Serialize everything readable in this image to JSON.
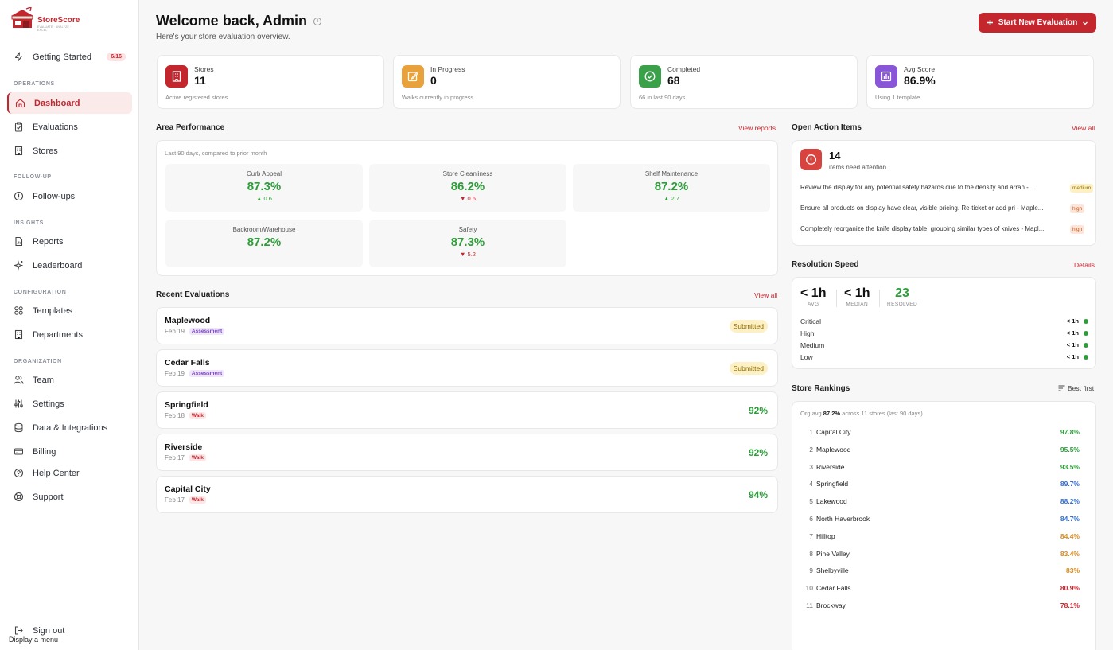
{
  "brand": {
    "name": "StoreScore",
    "tagline": "EVALUATE · ANALYZE · EXCEL"
  },
  "sidebar": {
    "getting_started": {
      "label": "Getting Started",
      "badge": "6/16"
    },
    "sections": [
      "OPERATIONS",
      "FOLLOW-UP",
      "INSIGHTS",
      "CONFIGURATION",
      "ORGANIZATION"
    ],
    "items": [
      {
        "label": "Dashboard"
      },
      {
        "label": "Evaluations"
      },
      {
        "label": "Stores"
      },
      {
        "label": "Follow-ups"
      },
      {
        "label": "Reports"
      },
      {
        "label": "Leaderboard"
      },
      {
        "label": "Templates"
      },
      {
        "label": "Departments"
      },
      {
        "label": "Team"
      },
      {
        "label": "Settings"
      },
      {
        "label": "Data & Integrations"
      },
      {
        "label": "Billing"
      },
      {
        "label": "Help Center"
      },
      {
        "label": "Support"
      }
    ],
    "sign_out": "Sign out",
    "tooltip": "Display a menu"
  },
  "header": {
    "title": "Welcome back, Admin",
    "info_glyph": "i",
    "subtitle": "Here's your store evaluation overview.",
    "primary_button": "Start New Evaluation"
  },
  "stats": [
    {
      "label": "Stores",
      "value": "11",
      "caption": "Active registered stores",
      "color": "#c4262e"
    },
    {
      "label": "In Progress",
      "value": "0",
      "caption": "Walks currently in progress",
      "color": "#e9a23b"
    },
    {
      "label": "Completed",
      "value": "68",
      "caption": "66 in last 90 days",
      "color": "#3aa14a"
    },
    {
      "label": "Avg Score",
      "value": "86.9%",
      "caption": "Using 1 template",
      "color": "#8a56d8"
    }
  ],
  "area_performance": {
    "title": "Area Performance",
    "link": "View reports",
    "caption": "Last 90 days, compared to prior month",
    "areas": [
      {
        "name": "Curb Appeal",
        "value": "87.3%",
        "delta": "▲ 0.6",
        "dir": "up"
      },
      {
        "name": "Store Cleanliness",
        "value": "86.2%",
        "delta": "▼ 0.6",
        "dir": "down"
      },
      {
        "name": "Shelf Maintenance",
        "value": "87.2%",
        "delta": "▲ 2.7",
        "dir": "up"
      },
      {
        "name": "Backroom/Warehouse",
        "value": "87.2%",
        "delta": "",
        "dir": ""
      },
      {
        "name": "Safety",
        "value": "87.3%",
        "delta": "▼ 5.2",
        "dir": "down"
      }
    ]
  },
  "recent_evaluations": {
    "title": "Recent Evaluations",
    "link": "View all",
    "rows": [
      {
        "store": "Maplewood",
        "date": "Feb 19",
        "type": "Assessment",
        "status": "Submitted",
        "score": ""
      },
      {
        "store": "Cedar Falls",
        "date": "Feb 19",
        "type": "Assessment",
        "status": "Submitted",
        "score": ""
      },
      {
        "store": "Springfield",
        "date": "Feb 18",
        "type": "Walk",
        "status": "",
        "score": "92%"
      },
      {
        "store": "Riverside",
        "date": "Feb 17",
        "type": "Walk",
        "status": "",
        "score": "92%"
      },
      {
        "store": "Capital City",
        "date": "Feb 17",
        "type": "Walk",
        "status": "",
        "score": "94%"
      }
    ]
  },
  "open_action_items": {
    "title": "Open Action Items",
    "link": "View all",
    "count": "14",
    "count_label": "items need attention",
    "items": [
      {
        "text": "Review the display for any potential safety hazards due to the density and arran - ...",
        "severity": "medium"
      },
      {
        "text": "Ensure all products on display have clear, visible pricing. Re-ticket or add pri - Maple...",
        "severity": "high"
      },
      {
        "text": "Completely reorganize the knife display table, grouping similar types of knives - Mapl...",
        "severity": "high"
      }
    ]
  },
  "resolution_speed": {
    "title": "Resolution Speed",
    "link": "Details",
    "avg": "< 1h",
    "avg_label": "AVG",
    "median": "< 1h",
    "median_label": "MEDIAN",
    "resolved": "23",
    "resolved_label": "RESOLVED",
    "rows": [
      {
        "label": "Critical",
        "time": "< 1h"
      },
      {
        "label": "High",
        "time": "< 1h"
      },
      {
        "label": "Medium",
        "time": "< 1h"
      },
      {
        "label": "Low",
        "time": "< 1h"
      }
    ]
  },
  "store_rankings": {
    "title": "Store Rankings",
    "sort_label": "Best first",
    "caption_prefix": "Org avg",
    "caption_value": "87.2%",
    "caption_suffix": "across 11 stores (last 90 days)",
    "rows": [
      {
        "rank": "1",
        "store": "Capital City",
        "score": "97.8%",
        "color": "#2e9c3a"
      },
      {
        "rank": "2",
        "store": "Maplewood",
        "score": "95.5%",
        "color": "#2e9c3a"
      },
      {
        "rank": "3",
        "store": "Riverside",
        "score": "93.5%",
        "color": "#2e9c3a"
      },
      {
        "rank": "4",
        "store": "Springfield",
        "score": "89.7%",
        "color": "#2f6fd6"
      },
      {
        "rank": "5",
        "store": "Lakewood",
        "score": "88.2%",
        "color": "#2f6fd6"
      },
      {
        "rank": "6",
        "store": "North Haverbrook",
        "score": "84.7%",
        "color": "#2f6fd6"
      },
      {
        "rank": "7",
        "store": "Hilltop",
        "score": "84.4%",
        "color": "#d98a1c"
      },
      {
        "rank": "8",
        "store": "Pine Valley",
        "score": "83.4%",
        "color": "#d98a1c"
      },
      {
        "rank": "9",
        "store": "Shelbyville",
        "score": "83%",
        "color": "#d98a1c"
      },
      {
        "rank": "10",
        "store": "Cedar Falls",
        "score": "80.9%",
        "color": "#c4262e"
      },
      {
        "rank": "11",
        "store": "Brockway",
        "score": "78.1%",
        "color": "#c4262e"
      }
    ]
  }
}
